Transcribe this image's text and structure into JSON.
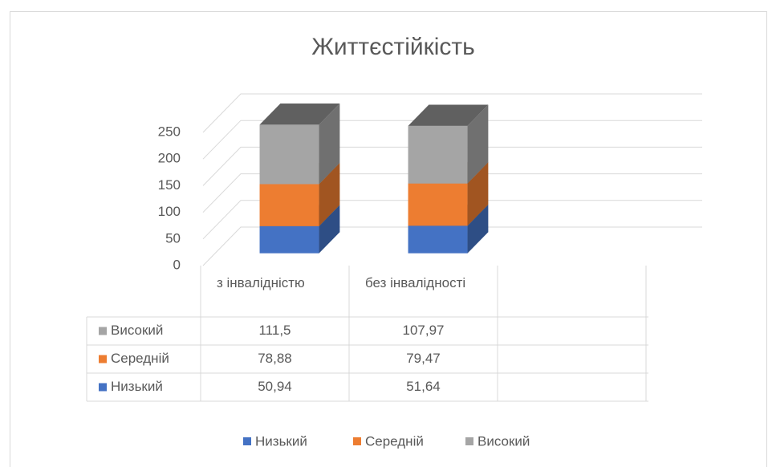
{
  "chart_data": {
    "type": "bar3d_stacked",
    "title": "Життєстійкість",
    "categories": [
      "з інвалідністю",
      "без інвалідності",
      null
    ],
    "series": [
      {
        "name": "Низький",
        "color": "#4472c4",
        "values": [
          50.94,
          51.64,
          null
        ],
        "value_labels": [
          "50,94",
          "51,64",
          null
        ]
      },
      {
        "name": "Середній",
        "color": "#ed7d31",
        "values": [
          78.88,
          79.47,
          null
        ],
        "value_labels": [
          "78,88",
          "79,47",
          null
        ]
      },
      {
        "name": "Високий",
        "color": "#a5a5a5",
        "values": [
          111.5,
          107.97,
          null
        ],
        "value_labels": [
          "111,5",
          "107,97",
          null
        ]
      }
    ],
    "ylim": [
      0,
      250
    ],
    "yticks": [
      0,
      50,
      100,
      150,
      200,
      250
    ],
    "grid": true,
    "data_table": true,
    "legend": "bottom"
  }
}
